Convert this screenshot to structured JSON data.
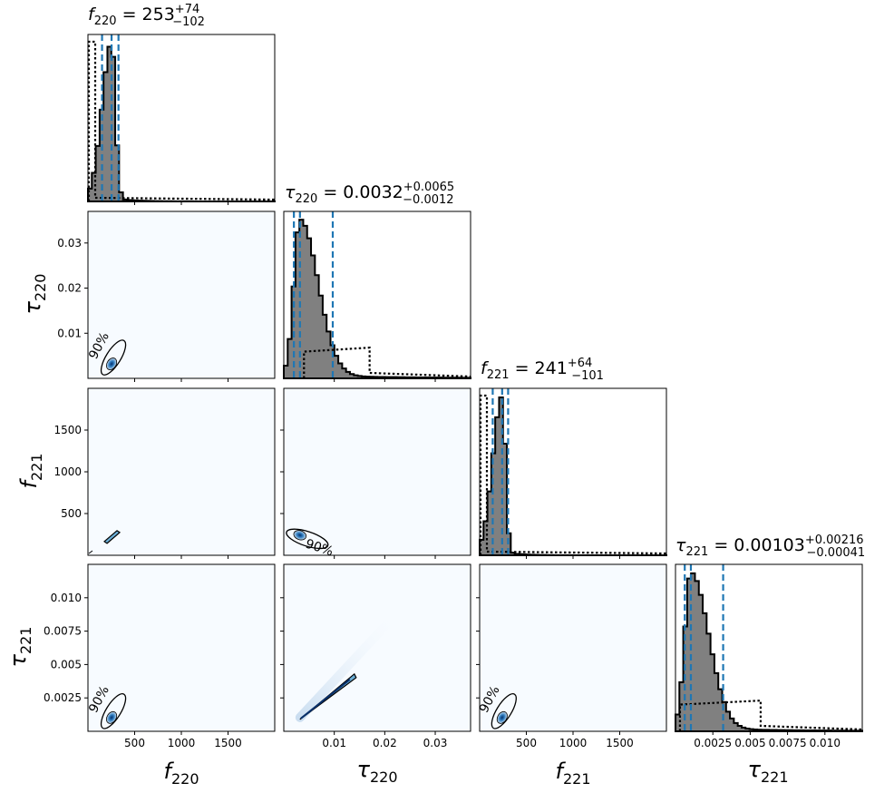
{
  "chart_data": {
    "type": "corner",
    "parameters": [
      {
        "symbol": "f",
        "sub": "220",
        "range": [
          0,
          2000
        ],
        "ticks": [
          500,
          1000,
          1500
        ],
        "tick_labels": [
          "500",
          "1000",
          "1500"
        ],
        "title": {
          "value": "253",
          "plus": "+74",
          "minus": "−102"
        },
        "median": 253,
        "quantiles": [
          151,
          327
        ]
      },
      {
        "symbol": "τ",
        "sub": "220",
        "range": [
          0,
          0.037
        ],
        "ticks": [
          0.01,
          0.02,
          0.03
        ],
        "tick_labels": [
          "0.01",
          "0.02",
          "0.03"
        ],
        "title": {
          "value": "0.0032",
          "plus": "+0.0065",
          "minus": "−0.0012"
        },
        "median": 0.0032,
        "quantiles": [
          0.002,
          0.0097
        ]
      },
      {
        "symbol": "f",
        "sub": "221",
        "range": [
          0,
          2000
        ],
        "ticks": [
          500,
          1000,
          1500
        ],
        "tick_labels": [
          "500",
          "1000",
          "1500"
        ],
        "title": {
          "value": "241",
          "plus": "+64",
          "minus": "−101"
        },
        "median": 241,
        "quantiles": [
          140,
          305
        ]
      },
      {
        "symbol": "τ",
        "sub": "221",
        "range": [
          0,
          0.0125
        ],
        "ticks": [
          0.0025,
          0.005,
          0.0075,
          0.01
        ],
        "tick_labels": [
          "0.0025",
          "0.005",
          "0.0075",
          "0.010"
        ],
        "title": {
          "value": "0.00103",
          "plus": "+0.00216",
          "minus": "−0.00041"
        },
        "median": 0.00103,
        "quantiles": [
          0.00062,
          0.00319
        ]
      }
    ],
    "contour_level_label": "90%",
    "colors": {
      "posterior_fill": "#808080",
      "quantile_lines": "#1f77b4",
      "prior_line": "#000000",
      "kde_background": "#f7fbff",
      "kde_core": "#2c7bbf"
    }
  }
}
